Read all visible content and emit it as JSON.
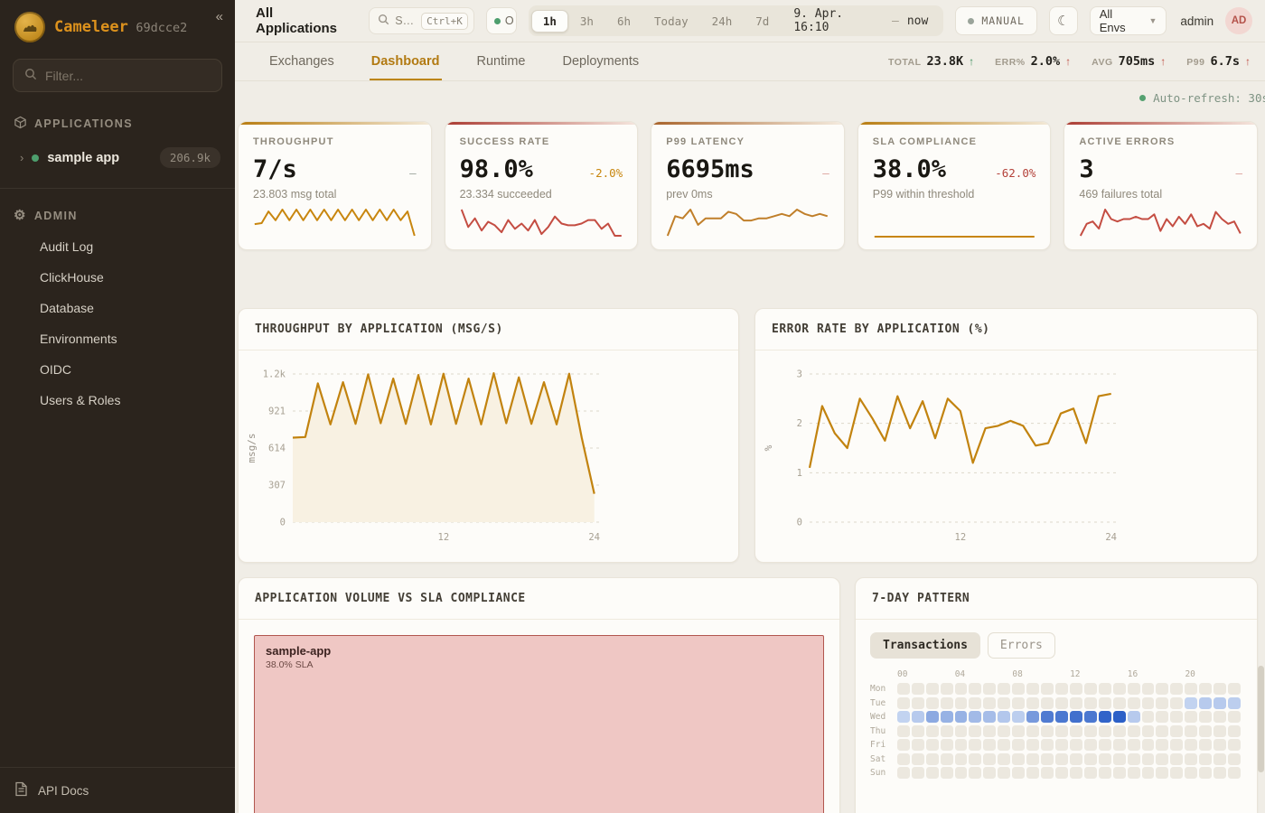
{
  "app": {
    "brand": "Cameleer",
    "build": "69dcce2",
    "collapse_icon": "«"
  },
  "sidebar": {
    "filter_placeholder": "Filter...",
    "applications_header": "APPLICATIONS",
    "app_item": {
      "chevron": "›",
      "name": "sample app",
      "badge": "206.9k"
    },
    "admin_header": "ADMIN",
    "admin_items": [
      "Audit Log",
      "ClickHouse",
      "Database",
      "Environments",
      "OIDC",
      "Users & Roles"
    ],
    "api_docs_label": "API Docs"
  },
  "topbar": {
    "title": "All Applications",
    "search_text": "S…",
    "search_shortcut": "Ctrl+K",
    "online_label": "O",
    "time_ranges": [
      "1h",
      "3h",
      "6h",
      "Today",
      "24h",
      "7d"
    ],
    "active_range": "1h",
    "range_from": "9. Apr. 16:10",
    "range_dash": "–",
    "range_to": "now",
    "manual_label": "MANUAL",
    "env_label": "All Envs",
    "user_name": "admin",
    "user_initials": "AD"
  },
  "tabs": {
    "items": [
      "Exchanges",
      "Dashboard",
      "Runtime",
      "Deployments"
    ],
    "active": "Dashboard"
  },
  "header_stats": [
    {
      "label": "TOTAL",
      "value": "23.8K",
      "arrow": "↑",
      "arrow_color": "#3f8f5f"
    },
    {
      "label": "ERR%",
      "value": "2.0%",
      "arrow": "↑",
      "arrow_color": "#bf4d42"
    },
    {
      "label": "AVG",
      "value": "705ms",
      "arrow": "↑",
      "arrow_color": "#bf4d42"
    },
    {
      "label": "P99",
      "value": "6.7s",
      "arrow": "↑",
      "arrow_color": "#bf4d42"
    }
  ],
  "auto_refresh": "Auto-refresh: 30s",
  "kpis": [
    {
      "title": "THROUGHPUT",
      "value": "7/s",
      "delta": "–",
      "delta_color": "#9aa39b",
      "sub": "23.803 msg total",
      "accent_from": "#b87c10",
      "accent_to": "#f3e9d8",
      "spark_color": "#c8860e",
      "spark": [
        3,
        3.2,
        5.6,
        3.8,
        6,
        3.8,
        6,
        3.8,
        6,
        3.8,
        6,
        3.8,
        6,
        3.8,
        6,
        3.8,
        6,
        3.8,
        6,
        3.8,
        6,
        3.8,
        5.6,
        0.6
      ]
    },
    {
      "title": "SUCCESS RATE",
      "value": "98.0%",
      "delta": "-2.0%",
      "delta_color": "#c8860e",
      "sub": "23.334 succeeded",
      "accent_from": "#ab3c33",
      "accent_to": "#f5e6de",
      "spark_color": "#c44d42",
      "spark": [
        8.5,
        3.5,
        6,
        2.5,
        5,
        4,
        2,
        5.5,
        3,
        4.5,
        2.5,
        5.5,
        1.5,
        3.5,
        6.5,
        4.5,
        4,
        4,
        4.5,
        5.5,
        5.5,
        3,
        4.5,
        1,
        1
      ]
    },
    {
      "title": "P99 LATENCY",
      "value": "6695ms",
      "delta": "–",
      "delta_color": "#dba09a",
      "sub": "prev 0ms",
      "accent_from": "#a8632a",
      "accent_to": "#f5ece0",
      "spark_color": "#c07f2a",
      "spark": [
        0.5,
        5,
        4.5,
        6.5,
        3,
        4.5,
        4.5,
        4.5,
        6,
        5.5,
        4,
        4,
        4.5,
        4.5,
        5,
        5.5,
        5,
        6.5,
        5.5,
        5,
        5.5,
        5
      ]
    },
    {
      "title": "SLA COMPLIANCE",
      "value": "38.0%",
      "delta": "-62.0%",
      "delta_color": "#b4423a",
      "sub": "P99 within threshold",
      "accent_from": "#b87c10",
      "accent_to": "#f3e9d8",
      "spark_color": "#c8860e",
      "spark": [
        1,
        1
      ]
    },
    {
      "title": "ACTIVE ERRORS",
      "value": "3",
      "delta": "–",
      "delta_color": "#dba09a",
      "sub": "469 failures total",
      "accent_from": "#ab3c33",
      "accent_to": "#f5e6de",
      "spark_color": "#c44d42",
      "spark": [
        1,
        3.5,
        4,
        2.5,
        6.5,
        4.5,
        4,
        4.5,
        4.5,
        5,
        4.5,
        4.5,
        5.5,
        2,
        4.5,
        3,
        5,
        3.5,
        5.5,
        3,
        3.5,
        2.5,
        6,
        4.5,
        3.5,
        4,
        1.5
      ]
    }
  ],
  "chart_data": [
    {
      "type": "area",
      "title": "THROUGHPUT BY APPLICATION (MSG/S)",
      "ylabel": "msg/s",
      "ylim": [
        0,
        1228
      ],
      "xlim": [
        0,
        24.6
      ],
      "yticks": [
        {
          "v": 0,
          "label": "0"
        },
        {
          "v": 307,
          "label": "307"
        },
        {
          "v": 614,
          "label": "614"
        },
        {
          "v": 921,
          "label": "921"
        },
        {
          "v": 1228,
          "label": "1.2k"
        }
      ],
      "xticks": [
        {
          "v": 12,
          "label": "12"
        },
        {
          "v": 24,
          "label": "24"
        }
      ],
      "grid": "dashed",
      "legend": "none",
      "values": [
        700,
        705,
        1150,
        810,
        1160,
        815,
        1225,
        820,
        1190,
        815,
        1220,
        810,
        1230,
        815,
        1190,
        810,
        1235,
        820,
        1200,
        815,
        1160,
        810,
        1230,
        700,
        235
      ],
      "color": "#c2830f",
      "fill": "#f8f1e2"
    },
    {
      "type": "line",
      "title": "ERROR RATE BY APPLICATION (%)",
      "ylabel": "%",
      "ylim": [
        0,
        3
      ],
      "xlim": [
        0,
        24.6
      ],
      "yticks": [
        {
          "v": 0,
          "label": "0"
        },
        {
          "v": 1,
          "label": "1"
        },
        {
          "v": 2,
          "label": "2"
        },
        {
          "v": 3,
          "label": "3"
        }
      ],
      "xticks": [
        {
          "v": 12,
          "label": "12"
        },
        {
          "v": 24,
          "label": "24"
        }
      ],
      "grid": "dashed",
      "legend": "none",
      "values": [
        1.1,
        2.35,
        1.8,
        1.5,
        2.5,
        2.1,
        1.65,
        2.55,
        1.9,
        2.45,
        1.7,
        2.5,
        2.25,
        1.2,
        1.9,
        1.95,
        2.05,
        1.95,
        1.55,
        1.6,
        2.2,
        2.3,
        1.6,
        2.55,
        2.6
      ],
      "color": "#c2830f",
      "fill": null
    },
    {
      "type": "treemap",
      "title": "APPLICATION VOLUME VS SLA COMPLIANCE",
      "items": [
        {
          "name": "sample-app",
          "value_label": "38.0% SLA",
          "fill": "#efc7c4",
          "border": "#b2564f"
        }
      ]
    },
    {
      "type": "heatmap",
      "title": "7-DAY PATTERN",
      "toggle": [
        "Transactions",
        "Errors"
      ],
      "active_toggle": "Transactions",
      "col_labels": [
        "00",
        "04",
        "08",
        "12",
        "16",
        "20"
      ],
      "rows": [
        "Mon",
        "Tue",
        "Wed",
        "Thu",
        "Fri",
        "Sat",
        "Sun"
      ],
      "values": [
        [
          0,
          0,
          0,
          0,
          0,
          0,
          0,
          0,
          0,
          0,
          0,
          0,
          0,
          0,
          0,
          0,
          0,
          0,
          0,
          0,
          0,
          0,
          0,
          0
        ],
        [
          0,
          0,
          0,
          0,
          0,
          0,
          0,
          0,
          0,
          0,
          0,
          0,
          0,
          0,
          0,
          0,
          0,
          0,
          0,
          0,
          0.25,
          0.3,
          0.3,
          0.28
        ],
        [
          0.25,
          0.3,
          0.5,
          0.45,
          0.45,
          0.4,
          0.38,
          0.32,
          0.28,
          0.6,
          0.78,
          0.8,
          0.85,
          0.8,
          0.92,
          0.95,
          0.3,
          0,
          0,
          0,
          0,
          0,
          0,
          0
        ],
        [
          0,
          0,
          0,
          0,
          0,
          0,
          0,
          0,
          0,
          0,
          0,
          0,
          0,
          0,
          0,
          0,
          0,
          0,
          0,
          0,
          0,
          0,
          0,
          0
        ],
        [
          0,
          0,
          0,
          0,
          0,
          0,
          0,
          0,
          0,
          0,
          0,
          0,
          0,
          0,
          0,
          0,
          0,
          0,
          0,
          0,
          0,
          0,
          0,
          0
        ],
        [
          0,
          0,
          0,
          0,
          0,
          0,
          0,
          0,
          0,
          0,
          0,
          0,
          0,
          0,
          0,
          0,
          0,
          0,
          0,
          0,
          0,
          0,
          0,
          0
        ],
        [
          0,
          0,
          0,
          0,
          0,
          0,
          0,
          0,
          0,
          0,
          0,
          0,
          0,
          0,
          0,
          0,
          0,
          0,
          0,
          0,
          0,
          0,
          0,
          0
        ]
      ]
    }
  ]
}
